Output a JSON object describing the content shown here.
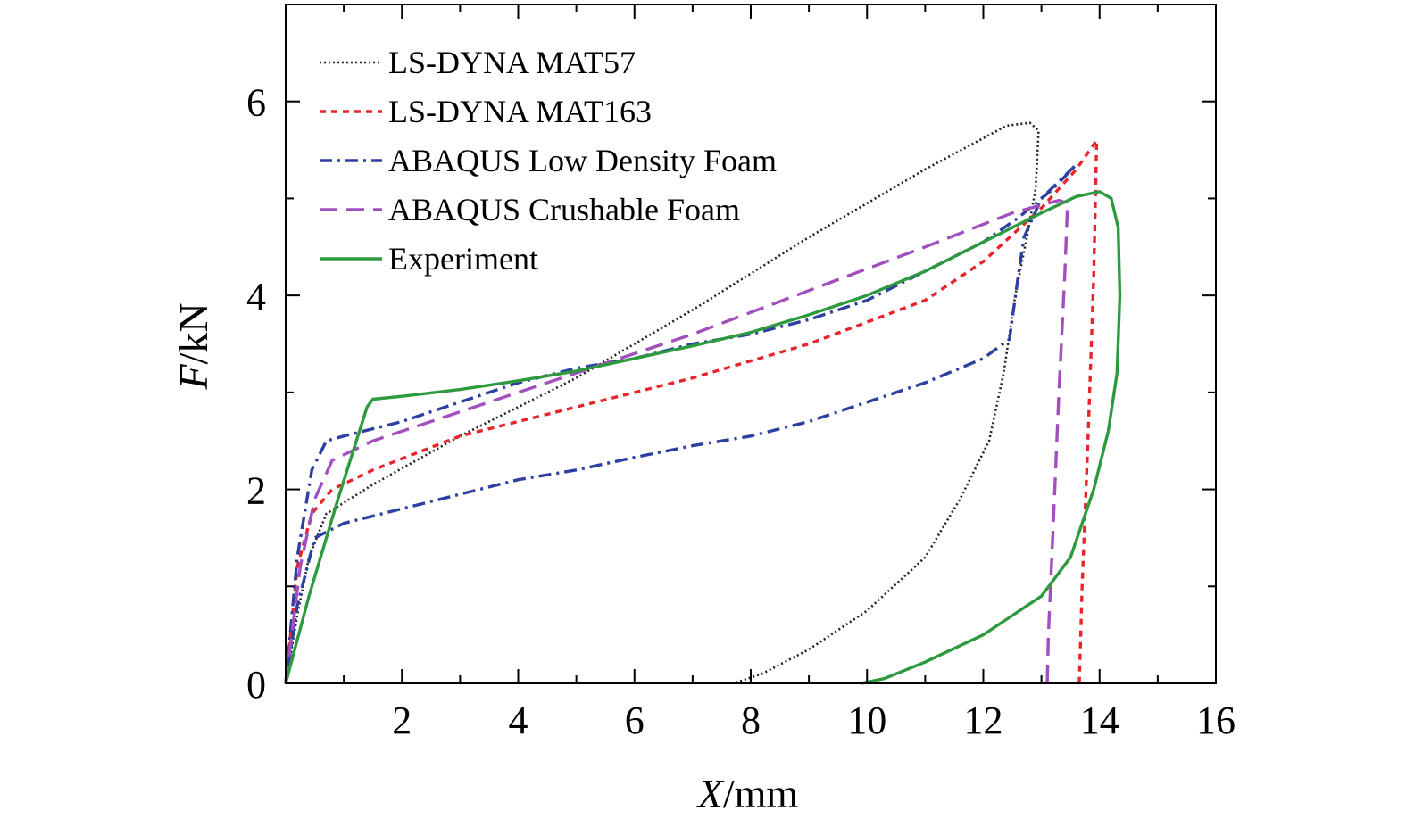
{
  "chart_data": {
    "type": "line",
    "title": "",
    "xlabel_var": "X",
    "xlabel_unit": "/mm",
    "ylabel_var": "F",
    "ylabel_unit": "/kN",
    "xlim": [
      0,
      16
    ],
    "ylim": [
      0,
      7
    ],
    "xticks": [
      2,
      4,
      6,
      8,
      10,
      12,
      14,
      16
    ],
    "xticks_minor": [
      1,
      3,
      5,
      7,
      9,
      11,
      13,
      15
    ],
    "yticks": [
      0,
      2,
      4,
      6
    ],
    "yticks_minor": [
      1,
      3,
      5,
      7
    ],
    "grid": false,
    "legend_position": "top-left",
    "series": [
      {
        "name": "LS-DYNA MAT57",
        "color": "#222222",
        "style": "dotted",
        "points": [
          [
            0,
            0
          ],
          [
            0.2,
            0.7
          ],
          [
            0.4,
            1.3
          ],
          [
            0.7,
            1.75
          ],
          [
            1.5,
            2.05
          ],
          [
            3,
            2.55
          ],
          [
            5,
            3.15
          ],
          [
            7,
            3.85
          ],
          [
            9,
            4.6
          ],
          [
            11,
            5.3
          ],
          [
            12.4,
            5.75
          ],
          [
            12.8,
            5.78
          ],
          [
            12.95,
            5.7
          ],
          [
            12.9,
            5.1
          ],
          [
            12.75,
            4.6
          ],
          [
            12.55,
            4.0
          ],
          [
            12.35,
            3.2
          ],
          [
            12.1,
            2.5
          ],
          [
            11.6,
            1.9
          ],
          [
            11,
            1.3
          ],
          [
            10,
            0.75
          ],
          [
            9,
            0.35
          ],
          [
            8.2,
            0.1
          ],
          [
            7.7,
            0
          ]
        ]
      },
      {
        "name": "LS-DYNA MAT163",
        "color": "#e8242b",
        "style": "dashed",
        "points": [
          [
            0,
            0
          ],
          [
            0.2,
            1.2
          ],
          [
            0.45,
            1.75
          ],
          [
            0.8,
            2.0
          ],
          [
            1.5,
            2.2
          ],
          [
            3,
            2.55
          ],
          [
            5,
            2.85
          ],
          [
            7,
            3.15
          ],
          [
            9,
            3.5
          ],
          [
            11,
            3.95
          ],
          [
            12,
            4.35
          ],
          [
            13,
            4.9
          ],
          [
            13.6,
            5.3
          ],
          [
            13.95,
            5.6
          ],
          [
            13.9,
            4.2
          ],
          [
            13.8,
            2.5
          ],
          [
            13.7,
            1.0
          ],
          [
            13.65,
            0
          ]
        ]
      },
      {
        "name": "ABAQUS Low Density Foam",
        "color": "#2e3fa2",
        "style": "dashdot",
        "points": [
          [
            0,
            0
          ],
          [
            0.2,
            1.3
          ],
          [
            0.45,
            2.2
          ],
          [
            0.7,
            2.5
          ],
          [
            1,
            2.55
          ],
          [
            2,
            2.7
          ],
          [
            3,
            2.9
          ],
          [
            4,
            3.1
          ],
          [
            5,
            3.25
          ],
          [
            6,
            3.35
          ],
          [
            7,
            3.5
          ],
          [
            8,
            3.6
          ],
          [
            9,
            3.75
          ],
          [
            10,
            3.95
          ],
          [
            11,
            4.25
          ],
          [
            12,
            4.55
          ],
          [
            12.6,
            4.8
          ],
          [
            13.2,
            5.1
          ],
          [
            13.6,
            5.35
          ],
          [
            13,
            5.0
          ],
          [
            12.7,
            4.6
          ],
          [
            12.6,
            4.2
          ],
          [
            12.45,
            3.55
          ],
          [
            12.0,
            3.35
          ],
          [
            11,
            3.1
          ],
          [
            10,
            2.9
          ],
          [
            9,
            2.7
          ],
          [
            8,
            2.55
          ],
          [
            7,
            2.45
          ],
          [
            6,
            2.33
          ],
          [
            5,
            2.2
          ],
          [
            4,
            2.1
          ],
          [
            3,
            1.95
          ],
          [
            2,
            1.8
          ],
          [
            1,
            1.65
          ],
          [
            0.5,
            1.5
          ],
          [
            0.2,
            0.8
          ],
          [
            0,
            0
          ]
        ]
      },
      {
        "name": "ABAQUS Crushable Foam",
        "color": "#a14fbf",
        "style": "longdash",
        "points": [
          [
            0,
            0
          ],
          [
            0.25,
            1.2
          ],
          [
            0.5,
            1.9
          ],
          [
            0.8,
            2.3
          ],
          [
            1.5,
            2.5
          ],
          [
            3,
            2.8
          ],
          [
            5,
            3.2
          ],
          [
            7,
            3.6
          ],
          [
            9,
            4.05
          ],
          [
            11,
            4.5
          ],
          [
            12.5,
            4.85
          ],
          [
            13.3,
            4.98
          ],
          [
            13.45,
            4.95
          ],
          [
            13.4,
            4.2
          ],
          [
            13.3,
            3.0
          ],
          [
            13.2,
            1.6
          ],
          [
            13.12,
            0.5
          ],
          [
            13.1,
            0
          ]
        ]
      },
      {
        "name": "Experiment",
        "color": "#2e9a3e",
        "style": "solid",
        "points": [
          [
            0,
            0
          ],
          [
            0.4,
            0.9
          ],
          [
            0.9,
            1.9
          ],
          [
            1.4,
            2.85
          ],
          [
            1.5,
            2.93
          ],
          [
            2,
            2.96
          ],
          [
            3,
            3.03
          ],
          [
            4,
            3.12
          ],
          [
            5,
            3.22
          ],
          [
            6,
            3.35
          ],
          [
            7,
            3.48
          ],
          [
            8,
            3.62
          ],
          [
            9,
            3.8
          ],
          [
            10,
            4.0
          ],
          [
            11,
            4.25
          ],
          [
            12,
            4.55
          ],
          [
            13,
            4.85
          ],
          [
            13.6,
            5.02
          ],
          [
            14,
            5.07
          ],
          [
            14.2,
            5.0
          ],
          [
            14.32,
            4.7
          ],
          [
            14.35,
            4.0
          ],
          [
            14.3,
            3.2
          ],
          [
            14.15,
            2.6
          ],
          [
            13.9,
            2.0
          ],
          [
            13.5,
            1.3
          ],
          [
            13,
            0.9
          ],
          [
            12,
            0.5
          ],
          [
            11,
            0.22
          ],
          [
            10.3,
            0.05
          ],
          [
            9.9,
            0
          ]
        ]
      }
    ]
  }
}
